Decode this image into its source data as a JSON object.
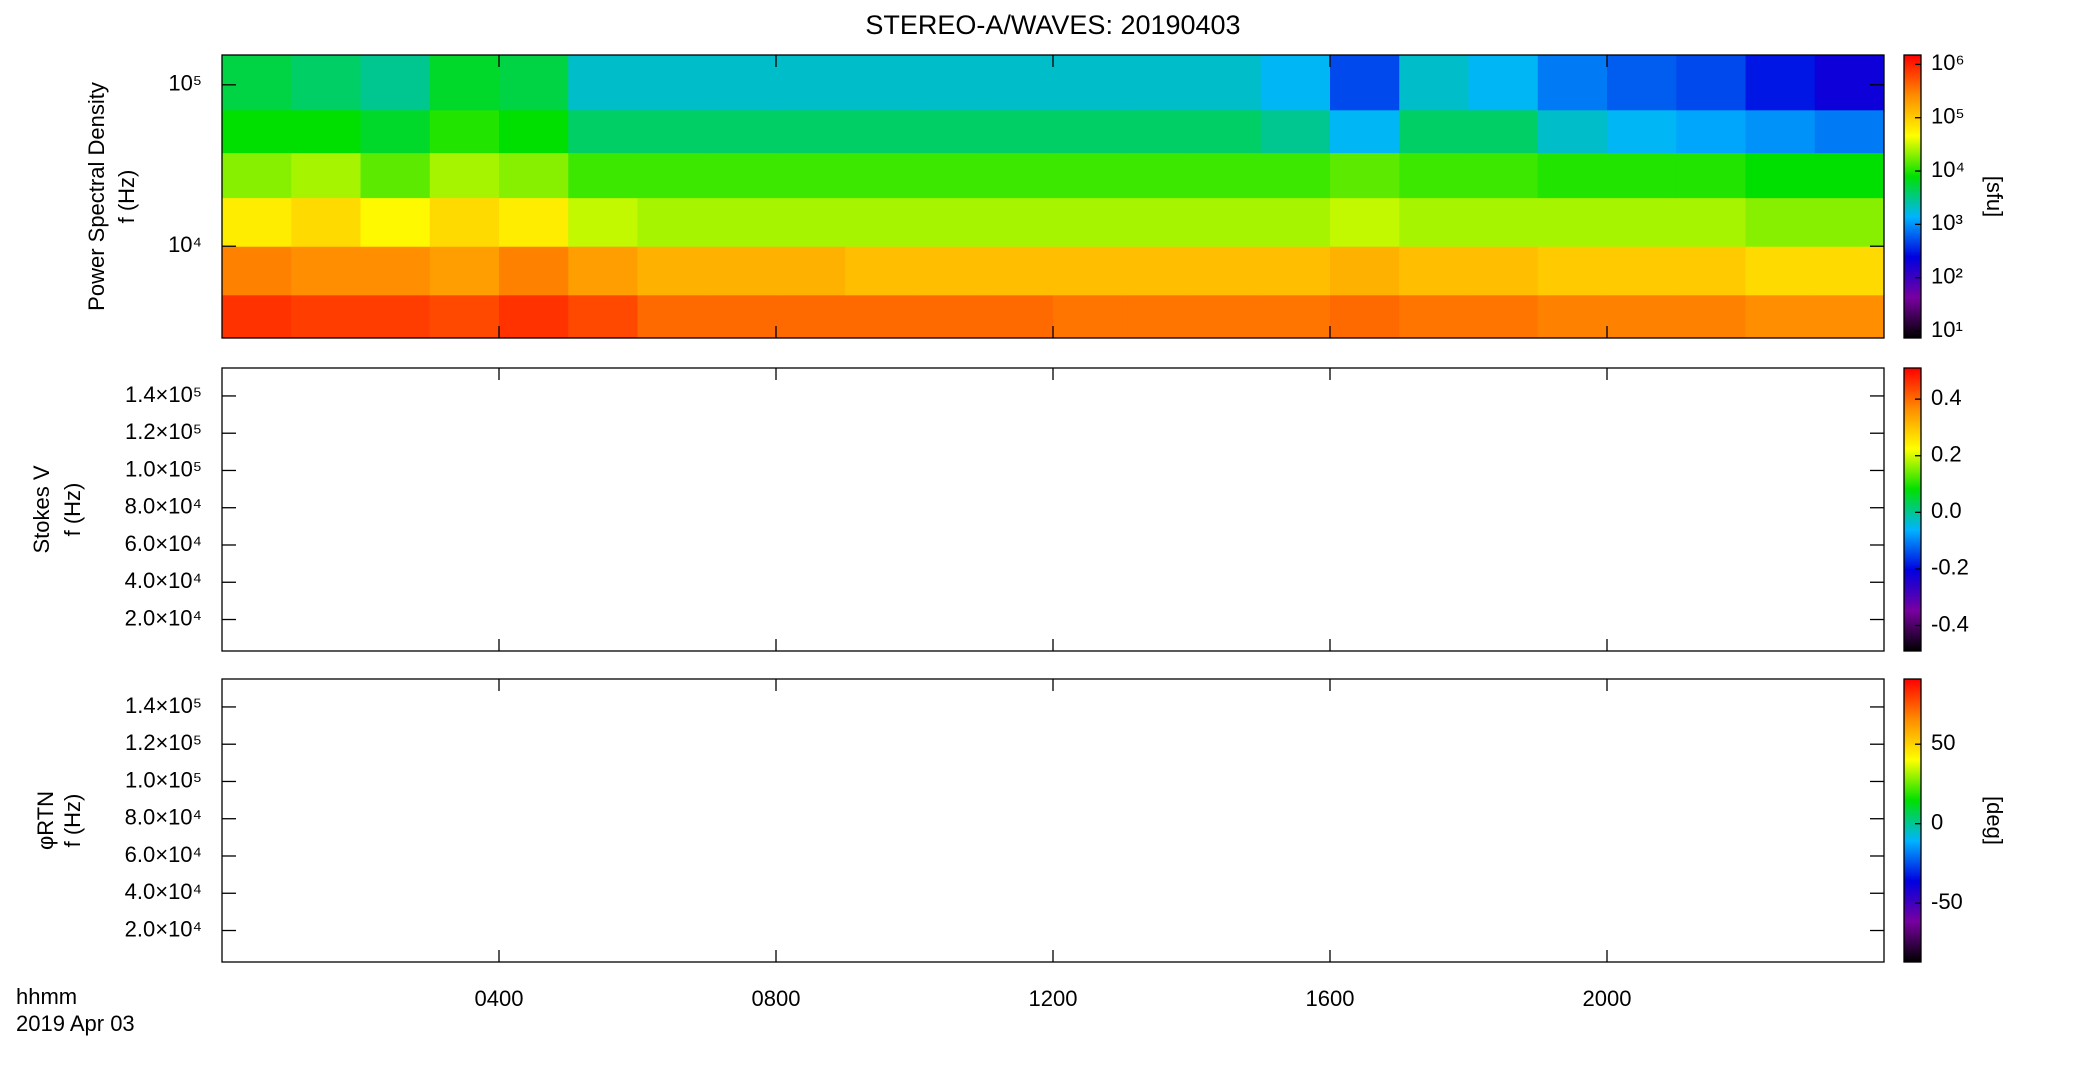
{
  "chart_data": [
    {
      "type": "heatmap",
      "title": "STEREO-A/WAVES: 20190403",
      "ylabel": [
        "Power Spectral Density",
        "f (Hz)"
      ],
      "ylog": true,
      "xlim": [
        0,
        24
      ],
      "xticks": [
        4,
        8,
        12,
        16,
        20
      ],
      "ylim": [
        2700,
        153000
      ],
      "yticks": [
        {
          "value": 10000,
          "label": "10⁴"
        },
        {
          "value": 100000,
          "label": "10⁵"
        }
      ],
      "colormap": [
        "#000000",
        "#7800a0",
        "#0000e0",
        "#00b4ff",
        "#00e000",
        "#ffff00",
        "#ff8c00",
        "#ff0000"
      ],
      "clog": true,
      "clim": [
        7.4,
        1500000
      ],
      "clabel": "[sfu]",
      "cticks": [
        {
          "value": 10,
          "label": "10¹"
        },
        {
          "value": 100,
          "label": "10²"
        },
        {
          "value": 1000,
          "label": "10³"
        },
        {
          "value": 10000,
          "label": "10⁴"
        },
        {
          "value": 100000,
          "label": "10⁵"
        },
        {
          "value": 1000000,
          "label": "10⁶"
        }
      ],
      "x_edges": [
        0,
        1,
        2,
        3,
        4,
        5,
        6,
        7,
        8,
        9,
        10,
        11,
        12,
        13,
        14,
        15,
        16,
        17,
        18,
        19,
        20,
        21,
        22,
        23,
        24
      ],
      "y_edges": [
        2700,
        5000,
        10000,
        20000,
        38000,
        70000,
        153000
      ],
      "z": [
        [
          800000,
          700000,
          700000,
          600000,
          800000,
          600000,
          400000,
          400000,
          400000,
          400000,
          400000,
          400000,
          350000,
          350000,
          350000,
          350000,
          400000,
          350000,
          350000,
          300000,
          300000,
          300000,
          250000,
          250000
        ],
        [
          300000,
          250000,
          250000,
          200000,
          300000,
          200000,
          150000,
          150000,
          150000,
          120000,
          120000,
          120000,
          120000,
          120000,
          120000,
          120000,
          150000,
          120000,
          120000,
          100000,
          100000,
          100000,
          80000,
          80000
        ],
        [
          60000,
          80000,
          50000,
          80000,
          60000,
          30000,
          25000,
          25000,
          25000,
          25000,
          25000,
          25000,
          25000,
          25000,
          25000,
          25000,
          30000,
          25000,
          25000,
          25000,
          25000,
          25000,
          20000,
          20000
        ],
        [
          20000,
          25000,
          15000,
          25000,
          20000,
          12000,
          12000,
          12000,
          12000,
          12000,
          12000,
          12000,
          12000,
          12000,
          12000,
          12000,
          15000,
          12000,
          12000,
          10000,
          10000,
          10000,
          8000,
          8000
        ],
        [
          8000,
          8000,
          6000,
          10000,
          8000,
          4000,
          4000,
          4000,
          4000,
          4000,
          4000,
          4000,
          4000,
          4000,
          4000,
          3000,
          1500,
          4000,
          4000,
          2000,
          1500,
          1200,
          1000,
          800
        ],
        [
          5000,
          4000,
          3000,
          6000,
          5000,
          2000,
          2000,
          2000,
          2000,
          2000,
          2000,
          2000,
          2000,
          2000,
          2000,
          1500,
          500,
          2000,
          1500,
          800,
          600,
          500,
          300,
          200
        ]
      ]
    },
    {
      "type": "heatmap",
      "ylabel": [
        "Stokes V",
        "f (Hz)"
      ],
      "ylog": false,
      "xlim": [
        0,
        24
      ],
      "xticks": [
        4,
        8,
        12,
        16,
        20
      ],
      "ylim": [
        3100,
        155000
      ],
      "yticks": [
        {
          "value": 20000,
          "label": "2.0×10⁴"
        },
        {
          "value": 40000,
          "label": "4.0×10⁴"
        },
        {
          "value": 60000,
          "label": "6.0×10⁴"
        },
        {
          "value": 80000,
          "label": "8.0×10⁴"
        },
        {
          "value": 100000,
          "label": "1.0×10⁵"
        },
        {
          "value": 120000,
          "label": "1.2×10⁵"
        },
        {
          "value": 140000,
          "label": "1.4×10⁵"
        }
      ],
      "colormap": [
        "#000000",
        "#7800a0",
        "#0000e0",
        "#00b4ff",
        "#00e000",
        "#ffff00",
        "#ff8c00",
        "#ff0000"
      ],
      "clog": false,
      "clim": [
        -0.49,
        0.51
      ],
      "cticks": [
        -0.4,
        -0.2,
        {
          "value": 0,
          "label": "0.0"
        },
        0.2,
        0.4
      ]
    },
    {
      "type": "heatmap",
      "ylabel": [
        "φRTN",
        "f (Hz)"
      ],
      "ylog": false,
      "xlim": [
        0,
        24
      ],
      "xticks": [
        {
          "value": 4,
          "label": "0400"
        },
        {
          "value": 8,
          "label": "0800"
        },
        {
          "value": 12,
          "label": "1200"
        },
        {
          "value": 16,
          "label": "1600"
        },
        {
          "value": 20,
          "label": "2000"
        }
      ],
      "xlabel": [
        "hhmm",
        "2019 Apr 03"
      ],
      "ylim": [
        3100,
        155000
      ],
      "yticks": [
        {
          "value": 20000,
          "label": "2.0×10⁴"
        },
        {
          "value": 40000,
          "label": "4.0×10⁴"
        },
        {
          "value": 60000,
          "label": "6.0×10⁴"
        },
        {
          "value": 80000,
          "label": "8.0×10⁴"
        },
        {
          "value": 100000,
          "label": "1.0×10⁵"
        },
        {
          "value": 120000,
          "label": "1.2×10⁵"
        },
        {
          "value": 140000,
          "label": "1.4×10⁵"
        }
      ],
      "colormap": [
        "#000000",
        "#7800a0",
        "#0000e0",
        "#00b4ff",
        "#00e000",
        "#ffff00",
        "#ff8c00",
        "#ff0000"
      ],
      "clog": false,
      "clim": [
        -87,
        91
      ],
      "clabel": "[deg]",
      "cticks": [
        -50,
        0,
        50
      ]
    }
  ]
}
